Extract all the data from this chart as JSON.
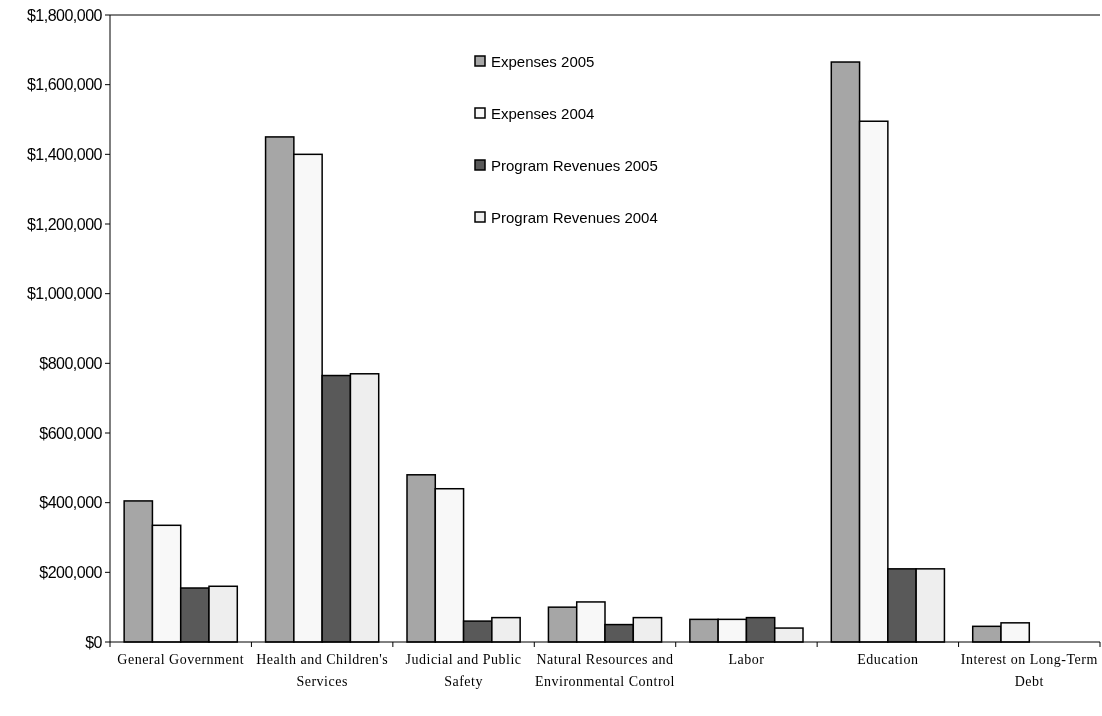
{
  "chart_data": {
    "type": "bar",
    "categories": [
      "General Government",
      "Health and Children's Services",
      "Judicial and Public Safety",
      "Natural Resources and Environmental Control",
      "Labor",
      "Education",
      "Interest on Long-Term Debt"
    ],
    "series": [
      {
        "name": "Expenses 2005",
        "color": "#a6a6a6",
        "values": [
          405000,
          1450000,
          480000,
          100000,
          65000,
          1665000,
          45000
        ]
      },
      {
        "name": "Expenses 2004",
        "color": "#f8f8f8",
        "values": [
          335000,
          1400000,
          440000,
          115000,
          65000,
          1495000,
          55000
        ]
      },
      {
        "name": "Program Revenues 2005",
        "color": "#595959",
        "values": [
          155000,
          765000,
          60000,
          50000,
          70000,
          210000,
          null
        ]
      },
      {
        "name": "Program Revenues 2004",
        "color": "#eeeeee",
        "values": [
          160000,
          770000,
          70000,
          70000,
          40000,
          210000,
          null
        ]
      }
    ],
    "ylim": [
      0,
      1800000
    ],
    "yticks": [
      {
        "value": 0,
        "label": "$0"
      },
      {
        "value": 200000,
        "label": "$200,000"
      },
      {
        "value": 400000,
        "label": "$400,000"
      },
      {
        "value": 600000,
        "label": "$600,000"
      },
      {
        "value": 800000,
        "label": "$800,000"
      },
      {
        "value": 1000000,
        "label": "$1,000,000"
      },
      {
        "value": 1200000,
        "label": "$1,200,000"
      },
      {
        "value": 1400000,
        "label": "$1,400,000"
      },
      {
        "value": 1600000,
        "label": "$1,600,000"
      },
      {
        "value": 1800000,
        "label": "$1,800,000"
      }
    ],
    "grid": false,
    "legend": "top"
  }
}
